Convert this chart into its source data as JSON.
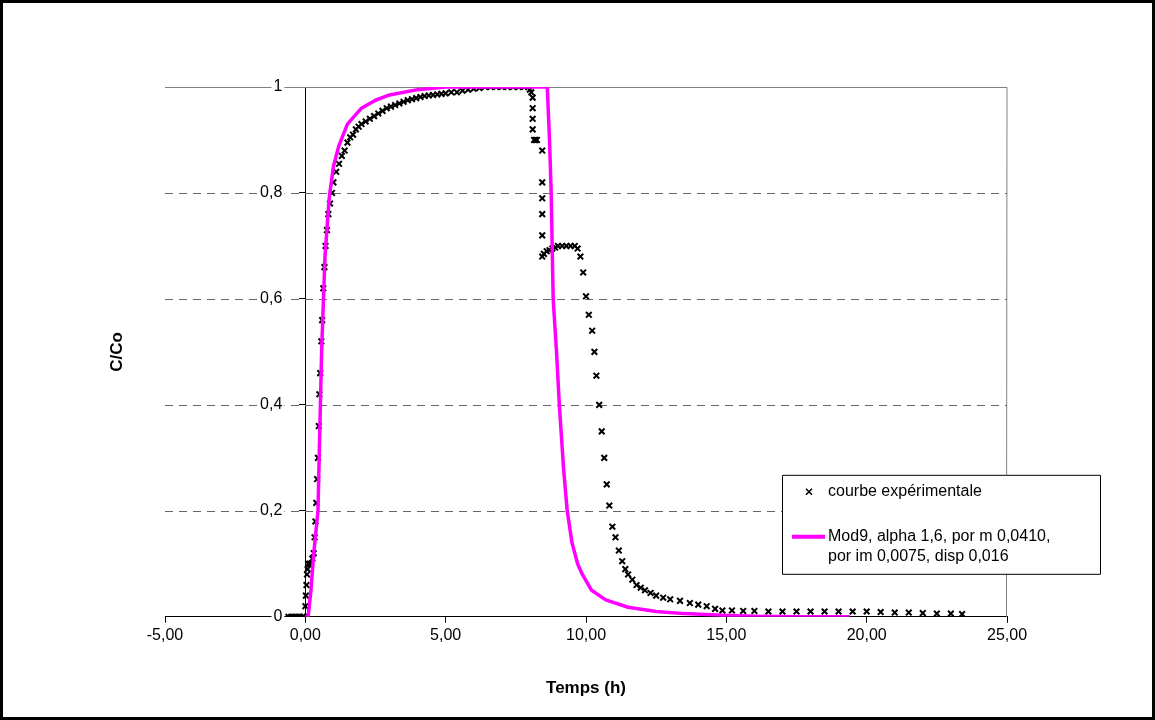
{
  "chart_data": {
    "type": "scatter",
    "xlabel": "Temps (h)",
    "ylabel": "C/Co",
    "xlim": [
      -5,
      25
    ],
    "xticks": [
      {
        "value": -5,
        "label": "-5,00"
      },
      {
        "value": 0,
        "label": "0,00"
      },
      {
        "value": 5,
        "label": "5,00"
      },
      {
        "value": 10,
        "label": "10,00"
      },
      {
        "value": 15,
        "label": "15,00"
      },
      {
        "value": 20,
        "label": "20,00"
      },
      {
        "value": 25,
        "label": "25,00"
      }
    ],
    "ylim": [
      0,
      1
    ],
    "yticks": [
      0,
      {
        "value": 0.2,
        "label": "0,2"
      },
      {
        "value": 0.4,
        "label": "0,4"
      },
      {
        "value": 0.6,
        "label": "0,6"
      },
      {
        "value": 0.8,
        "label": "0,8"
      },
      1
    ],
    "grid": "y",
    "legend": "bottom right",
    "series": [
      {
        "name": "courbe expérimentale",
        "marker": "cross",
        "color": "#000000",
        "x": [
          -0.6,
          -0.5,
          -0.4,
          -0.3,
          -0.2,
          -0.1,
          -0.05,
          0,
          0.02,
          0.04,
          0.06,
          0.08,
          0.1,
          0.15,
          0.2,
          0.25,
          0.3,
          0.33,
          0.36,
          0.39,
          0.42,
          0.45,
          0.48,
          0.5,
          0.53,
          0.57,
          0.6,
          0.64,
          0.68,
          0.72,
          0.77,
          0.82,
          0.88,
          0.95,
          1.0,
          1.1,
          1.2,
          1.3,
          1.4,
          1.5,
          1.6,
          1.7,
          1.8,
          1.9,
          2.0,
          2.15,
          2.3,
          2.45,
          2.6,
          2.75,
          2.9,
          3.05,
          3.2,
          3.35,
          3.5,
          3.65,
          3.8,
          3.95,
          4.1,
          4.25,
          4.4,
          4.55,
          4.7,
          4.85,
          5.0,
          5.2,
          5.4,
          5.6,
          5.8,
          6.0,
          6.2,
          6.4,
          6.6,
          6.8,
          7.0,
          7.2,
          7.4,
          7.6,
          7.8,
          7.94,
          8.0,
          8.05,
          8.1,
          8.1,
          8.1,
          8.1,
          8.15,
          8.2,
          8.25,
          8.44,
          8.44,
          8.44,
          8.44,
          8.44,
          8.44,
          8.5,
          8.6,
          8.7,
          8.8,
          8.9,
          9.0,
          9.15,
          9.3,
          9.45,
          9.6,
          9.7,
          9.8,
          9.9,
          10.0,
          10.1,
          10.22,
          10.3,
          10.37,
          10.47,
          10.56,
          10.65,
          10.74,
          10.83,
          10.94,
          11.05,
          11.17,
          11.29,
          11.4,
          11.5,
          11.65,
          11.8,
          11.95,
          12.1,
          12.3,
          12.5,
          12.75,
          13.0,
          13.35,
          13.7,
          14.0,
          14.3,
          14.6,
          14.86,
          15.2,
          15.6,
          16,
          16.5,
          17,
          17.5,
          18,
          18.5,
          19,
          19.5,
          20,
          20.5,
          21,
          21.5,
          22,
          22.5,
          23,
          23.4
        ],
        "values": [
          0,
          0,
          0,
          0,
          0,
          0,
          0,
          0.02,
          0.04,
          0.06,
          0.08,
          0.09,
          0.1,
          0.1,
          0.1,
          0.11,
          0.12,
          0.15,
          0.18,
          0.215,
          0.26,
          0.3,
          0.36,
          0.42,
          0.46,
          0.52,
          0.56,
          0.62,
          0.66,
          0.7,
          0.73,
          0.76,
          0.78,
          0.8,
          0.82,
          0.84,
          0.855,
          0.87,
          0.88,
          0.895,
          0.905,
          0.91,
          0.92,
          0.925,
          0.93,
          0.935,
          0.94,
          0.945,
          0.95,
          0.955,
          0.96,
          0.963,
          0.966,
          0.969,
          0.972,
          0.975,
          0.977,
          0.979,
          0.981,
          0.983,
          0.984,
          0.985,
          0.986,
          0.987,
          0.988,
          0.99,
          0.99,
          0.993,
          0.995,
          0.997,
          0.998,
          1,
          1,
          1,
          1,
          1,
          1,
          1,
          1,
          1,
          0.995,
          0.99,
          0.98,
          0.96,
          0.94,
          0.92,
          0.9,
          0.9,
          0.9,
          0.88,
          0.82,
          0.79,
          0.76,
          0.72,
          0.68,
          0.685,
          0.69,
          0.692,
          0.695,
          0.697,
          0.7,
          0.7,
          0.7,
          0.7,
          0.7,
          0.695,
          0.68,
          0.65,
          0.605,
          0.57,
          0.54,
          0.5,
          0.455,
          0.4,
          0.35,
          0.3,
          0.25,
          0.21,
          0.17,
          0.15,
          0.125,
          0.105,
          0.09,
          0.08,
          0.07,
          0.06,
          0.055,
          0.05,
          0.045,
          0.04,
          0.036,
          0.033,
          0.03,
          0.026,
          0.023,
          0.02,
          0.015,
          0.012,
          0.012,
          0.011,
          0.011,
          0.01,
          0.01,
          0.01,
          0.01,
          0.01,
          0.01,
          0.01,
          0.01,
          0.009,
          0.008,
          0.008,
          0.007,
          0.006,
          0.006,
          0.005
        ]
      },
      {
        "name": "Mod9, alpha 1,6, por m 0,0410, por im 0,0075, disp 0,016",
        "type": "line",
        "marker": "none",
        "color": "#ff00ff",
        "x": [
          0,
          0.1,
          0.2,
          0.3,
          0.45,
          0.58,
          0.7,
          0.85,
          1.0,
          1.2,
          1.5,
          2.0,
          2.5,
          3.0,
          4.0,
          5.0,
          6.0,
          7.0,
          8.0,
          8.5,
          8.62,
          8.7,
          8.76,
          8.83,
          8.95,
          9.05,
          9.2,
          9.33,
          9.5,
          9.7,
          9.87,
          10.2,
          10.7,
          11.5,
          12.5,
          13.5,
          14.86,
          16,
          17.5,
          19.4
        ],
        "values": [
          0,
          0,
          0.05,
          0.12,
          0.2,
          0.5,
          0.68,
          0.79,
          0.85,
          0.89,
          0.93,
          0.96,
          0.975,
          0.985,
          0.995,
          1,
          1,
          1,
          1,
          1,
          1,
          0.9,
          0.8,
          0.6,
          0.5,
          0.4,
          0.28,
          0.2,
          0.14,
          0.1,
          0.08,
          0.05,
          0.032,
          0.018,
          0.01,
          0.006,
          0.003,
          0.001,
          0,
          0
        ]
      }
    ]
  }
}
